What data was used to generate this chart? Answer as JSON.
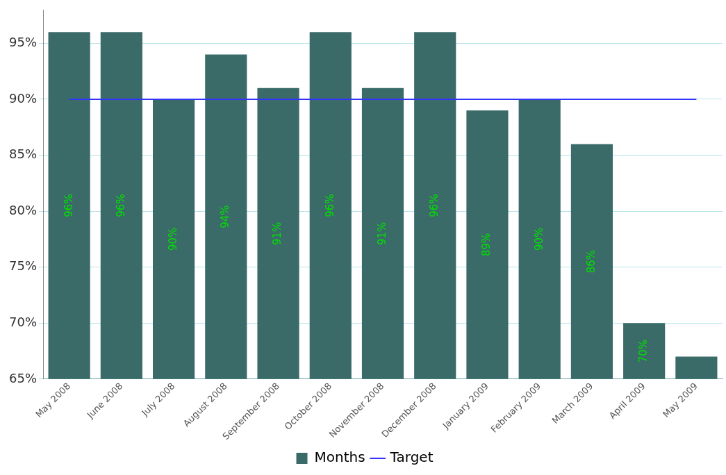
{
  "chart_data": {
    "type": "bar",
    "categories": [
      "May 2008",
      "June 2008",
      "July 2008",
      "August 2008",
      "September 2008",
      "October 2008",
      "November 2008",
      "December 2008",
      "January 2009",
      "February 2009",
      "March 2009",
      "April 2009",
      "May 2009"
    ],
    "series": [
      {
        "name": "Months",
        "color": "#3a6b68",
        "values": [
          96,
          96,
          90,
          94,
          91,
          96,
          91,
          96,
          89,
          90,
          86,
          70,
          67
        ],
        "value_labels": [
          "96%",
          "96%",
          "90%",
          "94%",
          "91%",
          "96%",
          "91%",
          "96%",
          "89%",
          "90%",
          "86%",
          "70%",
          null
        ]
      },
      {
        "name": "Target",
        "type": "line",
        "color": "#3333ff",
        "values": [
          90,
          90,
          90,
          90,
          90,
          90,
          90,
          90,
          90,
          90,
          90,
          90,
          90
        ]
      }
    ],
    "ylim": [
      65,
      98
    ],
    "yticks": [
      {
        "value": 65,
        "label": "65%"
      },
      {
        "value": 70,
        "label": "70%"
      },
      {
        "value": 75,
        "label": "75%"
      },
      {
        "value": 80,
        "label": "80%"
      },
      {
        "value": 85,
        "label": "85%"
      },
      {
        "value": 90,
        "label": "90%"
      },
      {
        "value": 95,
        "label": "95%"
      }
    ],
    "grid": "y",
    "legend": "bottom",
    "marker": "none",
    "line_style": "solid"
  }
}
